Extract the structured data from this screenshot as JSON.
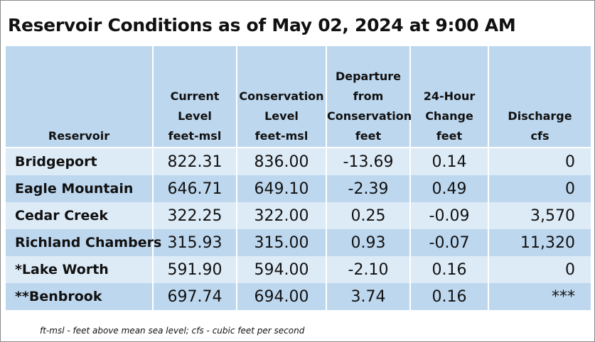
{
  "title": "Reservoir Conditions as of May 02, 2024 at 9:00 AM",
  "headers": {
    "reservoir": [
      "Reservoir"
    ],
    "current": [
      "Current",
      "Level",
      "feet-msl"
    ],
    "conservation": [
      "Conservation",
      "Level",
      "feet-msl"
    ],
    "departure": [
      "Departure",
      "from",
      "Conservation",
      "feet"
    ],
    "change": [
      "24-Hour",
      "Change",
      "feet"
    ],
    "discharge": [
      "Discharge",
      "cfs"
    ]
  },
  "rows": [
    {
      "name": "Bridgeport",
      "current": "822.31",
      "conservation": "836.00",
      "departure": "-13.69",
      "change": "0.14",
      "discharge": "0"
    },
    {
      "name": "Eagle Mountain",
      "current": "646.71",
      "conservation": "649.10",
      "departure": "-2.39",
      "change": "0.49",
      "discharge": "0"
    },
    {
      "name": "Cedar Creek",
      "current": "322.25",
      "conservation": "322.00",
      "departure": "0.25",
      "change": "-0.09",
      "discharge": "3,570"
    },
    {
      "name": "Richland Chambers",
      "current": "315.93",
      "conservation": "315.00",
      "departure": "0.93",
      "change": "-0.07",
      "discharge": "11,320"
    },
    {
      "name": "*Lake Worth",
      "current": "591.90",
      "conservation": "594.00",
      "departure": "-2.10",
      "change": "0.16",
      "discharge": "0"
    },
    {
      "name": "**Benbrook",
      "current": "697.74",
      "conservation": "694.00",
      "departure": "3.74",
      "change": "0.16",
      "discharge": "***"
    }
  ],
  "footnote": "ft-msl - feet above mean sea level; cfs - cubic feet per second",
  "colors": {
    "header_bg": "#bdd7ee",
    "row_light": "#ddebf7",
    "row_dark": "#bdd7ee"
  }
}
